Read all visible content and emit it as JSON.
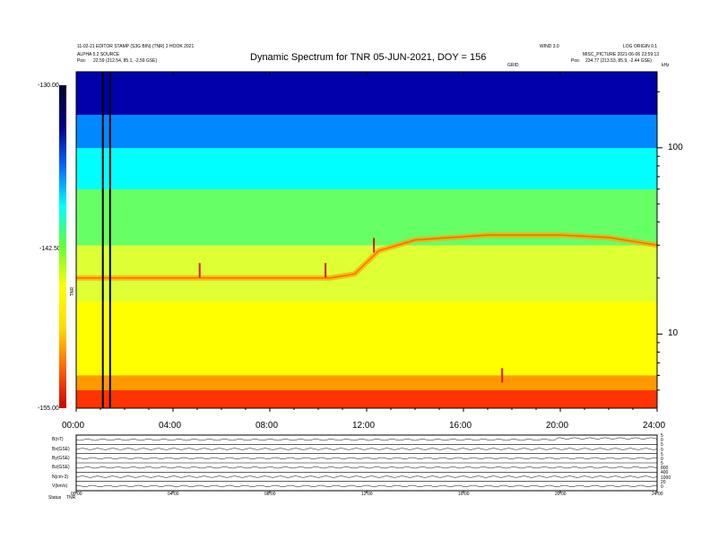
{
  "header": {
    "left_line1": "11-02-21 EDITOR STAMP (S3G BIN) (TNR) 2 HOOK 2021",
    "left_line2": "ALPHA 5.2 SOURCE",
    "left_pos_label": "Pos:",
    "left_pos_value": "22.59 (212.54, 85.1, -2.59 GSE)",
    "right_line1": "WIND 3.0",
    "right_line2": "LOG ORIGIN 0.1",
    "right_line3": "MISC_PICTURE 2021-06-06 23:59:13",
    "right_pos_label": "Pos:",
    "right_pos_value": "234.77 (213.53, 85.9, -2.44 GSE)",
    "marker_label": "GRID",
    "corner_label": "kHz"
  },
  "chart_data": {
    "type": "heatmap",
    "title": "Dynamic Spectrum for TNR 05-JUN-2021, DOY = 156",
    "x_ticks": [
      "00:00",
      "04:00",
      "08:00",
      "12:00",
      "16:00",
      "20:00",
      "24:00"
    ],
    "x_range_hours": [
      0,
      24
    ],
    "y_scale": "log",
    "y_range": [
      4,
      256
    ],
    "y_ticks": [
      10,
      100
    ],
    "colorbar": {
      "ticks": [
        "-130.00",
        "-142.50",
        "-155.00"
      ],
      "range": [
        -155,
        -130
      ],
      "label": "TNR",
      "colors": [
        "#cc0000",
        "#ff6600",
        "#ffdd00",
        "#ffff00",
        "#66ff33",
        "#00ffff",
        "#0066ff",
        "#000080",
        "#000033"
      ]
    },
    "spectrum_bands": [
      {
        "from_y": 4,
        "to_y": 5,
        "color": "#ff3300"
      },
      {
        "from_y": 5,
        "to_y": 6,
        "color": "#ff9900"
      },
      {
        "from_y": 6,
        "to_y": 15,
        "color": "#ffff00"
      },
      {
        "from_y": 15,
        "to_y": 30,
        "color": "#ddff33"
      },
      {
        "from_y": 30,
        "to_y": 60,
        "color": "#66ff66"
      },
      {
        "from_y": 60,
        "to_y": 100,
        "color": "#00ffff"
      },
      {
        "from_y": 100,
        "to_y": 150,
        "color": "#0088ff"
      },
      {
        "from_y": 150,
        "to_y": 256,
        "color": "#0000aa"
      }
    ],
    "emission_feature": [
      {
        "hour": 0,
        "y": 20
      },
      {
        "hour": 4,
        "y": 20
      },
      {
        "hour": 8,
        "y": 20
      },
      {
        "hour": 10.5,
        "y": 20
      },
      {
        "hour": 11.5,
        "y": 21
      },
      {
        "hour": 12.5,
        "y": 28
      },
      {
        "hour": 14,
        "y": 32
      },
      {
        "hour": 17,
        "y": 34
      },
      {
        "hour": 20,
        "y": 34
      },
      {
        "hour": 22,
        "y": 33
      },
      {
        "hour": 24,
        "y": 30
      }
    ],
    "spikes": [
      {
        "hour": 5.1,
        "y": 22
      },
      {
        "hour": 10.3,
        "y": 22
      },
      {
        "hour": 12.3,
        "y": 30
      },
      {
        "hour": 17.6,
        "y": 6
      }
    ],
    "vertical_markers_hours": [
      1.1,
      1.4
    ]
  },
  "lower_panel": {
    "row_labels": [
      "B(nT)",
      "Bx(GSE)",
      "By(GSE)",
      "Bz(GSE)",
      "N(cm-3)",
      "V(km/s)"
    ],
    "right_labels": [
      "5",
      "0",
      "5",
      "0",
      "5",
      "0",
      "5",
      "800",
      "400",
      "1000",
      "20",
      "0"
    ],
    "x_ticks": [
      "00:00",
      "04:00",
      "08:00",
      "12:00",
      "16:00",
      "20:00",
      "24:00"
    ],
    "status_label": "Status",
    "status_value": "TNR"
  }
}
